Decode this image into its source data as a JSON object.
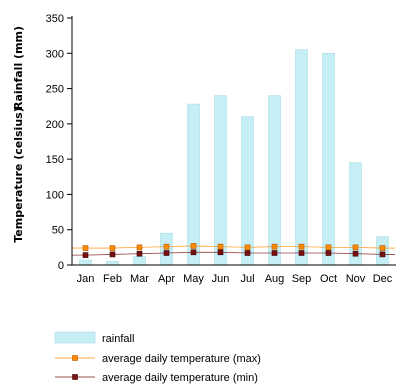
{
  "chart_data": {
    "type": "bar",
    "categories": [
      "Jan",
      "Feb",
      "Mar",
      "Apr",
      "May",
      "Jun",
      "Jul",
      "Aug",
      "Sep",
      "Oct",
      "Nov",
      "Dec"
    ],
    "series": [
      {
        "name": "rainfall",
        "type": "bar",
        "color": "#c6eef5",
        "values": [
          7,
          5,
          12,
          45,
          228,
          240,
          210,
          240,
          305,
          300,
          145,
          40
        ]
      },
      {
        "name": "average daily temperature (max)",
        "type": "line",
        "color": "#ff8c00",
        "values": [
          24,
          24,
          25,
          26,
          27,
          26,
          25,
          26,
          26,
          25,
          25,
          24
        ]
      },
      {
        "name": "average daily temperature (min)",
        "type": "line",
        "color": "#7a1010",
        "values": [
          14,
          15,
          16,
          17,
          18,
          18,
          17,
          17,
          17,
          17,
          16,
          15
        ]
      }
    ],
    "ylim": [
      0,
      350
    ],
    "yticks": [
      0,
      50,
      100,
      150,
      200,
      250,
      300,
      350
    ],
    "ylabel_top": "Rainfall (mm)",
    "ylabel_bottom": "Temperature (celsius)",
    "xlabel": "",
    "title": "",
    "grid": false,
    "legend_position": "bottom-left"
  }
}
